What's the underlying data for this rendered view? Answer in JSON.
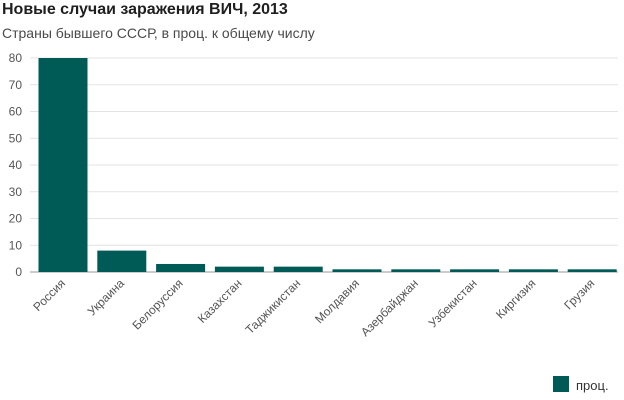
{
  "colors": {
    "bar": "#005a55",
    "grid": "#e3e3e3",
    "axis": "#999999"
  },
  "chart_data": {
    "type": "bar",
    "title": "Новые случаи заражения ВИЧ, 2013",
    "subtitle": "Страны бывшего СССР, в проц. к общему числу",
    "categories": [
      "Россия",
      "Украина",
      "Белоруссия",
      "Казахстан",
      "Таджикистан",
      "Молдавия",
      "Азербайджан",
      "Узбекистан",
      "Киргизия",
      "Грузия"
    ],
    "series": [
      {
        "name": "проц.",
        "values": [
          80,
          8,
          3,
          2,
          2,
          1,
          1,
          1,
          1,
          1
        ]
      }
    ],
    "xlabel": "",
    "ylabel": "",
    "ylim": [
      0,
      80
    ],
    "yticks": [
      0,
      10,
      20,
      30,
      40,
      50,
      60,
      70,
      80
    ],
    "grid": true,
    "legend": "bottom-right"
  }
}
